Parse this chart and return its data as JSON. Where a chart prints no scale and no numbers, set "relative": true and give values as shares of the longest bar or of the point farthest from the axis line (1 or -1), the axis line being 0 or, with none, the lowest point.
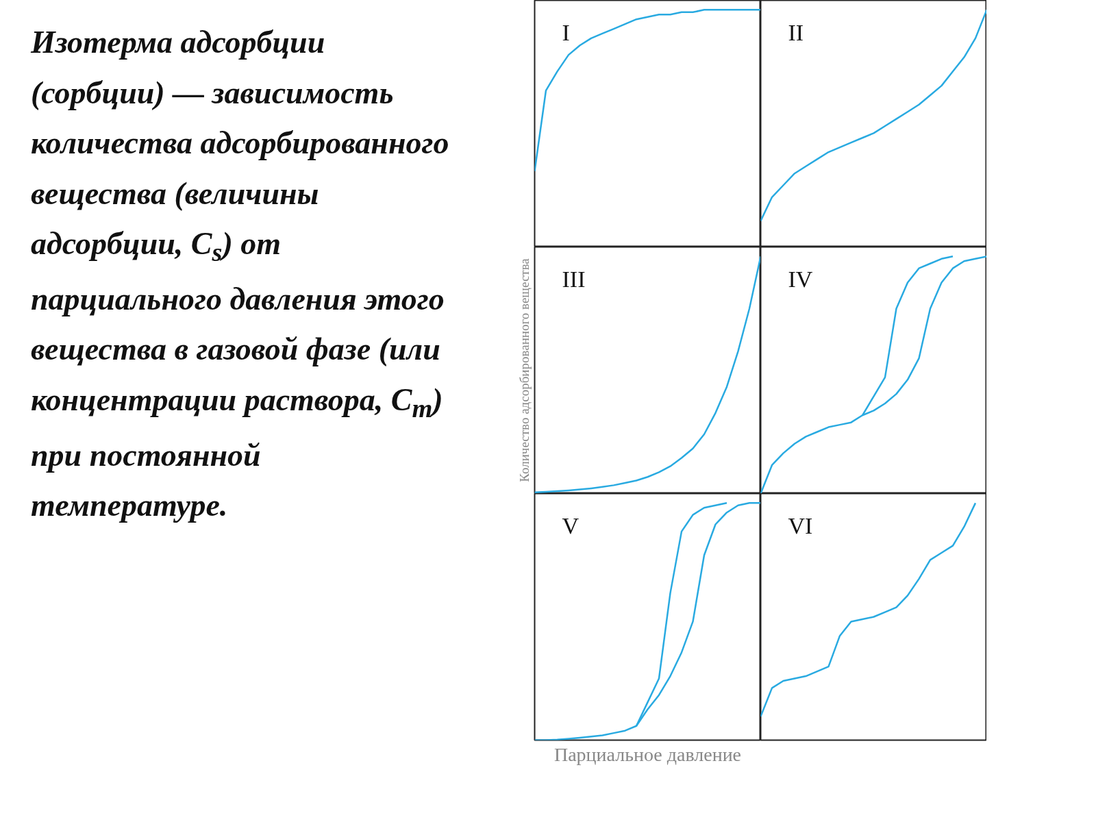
{
  "chart_data": [
    {
      "type": "other",
      "annotations": [
        "Изотерма адсорбции (сорбции) — зависимость количества адсорбированного вещества (величины адсорбции, C$_{s}$) от парциального давления этого вещества в газовой фазе (или концентрации раствора, C$_{m}$) при постоянной температуре."
      ]
    },
    {
      "type": "line",
      "title": "I",
      "relative": true,
      "categories": [
        null,
        null,
        null,
        null,
        null,
        null,
        null,
        null,
        null,
        null,
        null,
        null,
        null,
        null,
        null,
        null,
        null,
        null,
        null,
        null,
        null
      ],
      "series": [
        {
          "color": "#29aae1",
          "values": [
            0.32,
            0.66,
            0.74,
            0.81,
            0.85,
            0.88,
            0.9,
            0.92,
            0.94,
            0.96,
            0.97,
            0.98,
            0.98,
            0.99,
            0.99,
            1,
            1,
            1,
            1,
            1,
            1
          ]
        }
      ]
    },
    {
      "type": "line",
      "title": "II",
      "relative": true,
      "categories": [
        null,
        null,
        null,
        null,
        null,
        null,
        null,
        null,
        null,
        null,
        null,
        null,
        null,
        null,
        null,
        null,
        null,
        null,
        null,
        null,
        null
      ],
      "series": [
        {
          "color": "#29aae1",
          "values": [
            0.11,
            0.21,
            0.26,
            0.31,
            0.34,
            0.37,
            0.4,
            0.42,
            0.44,
            0.46,
            0.48,
            0.51,
            0.54,
            0.57,
            0.6,
            0.64,
            0.68,
            0.74,
            0.8,
            0.88,
            1
          ]
        }
      ]
    },
    {
      "type": "line",
      "title": "III",
      "ylabel": "Количество адсорбированного вещества",
      "relative": true,
      "categories": [
        null,
        null,
        null,
        null,
        null,
        null,
        null,
        null,
        null,
        null,
        null,
        null,
        null,
        null,
        null,
        null,
        null,
        null,
        null,
        null,
        null
      ],
      "series": [
        {
          "color": "#29aae1",
          "values": [
            0.005,
            0.007,
            0.01,
            0.013,
            0.017,
            0.022,
            0.028,
            0.035,
            0.045,
            0.055,
            0.07,
            0.09,
            0.115,
            0.15,
            0.19,
            0.25,
            0.34,
            0.45,
            0.6,
            0.78,
            1
          ]
        }
      ]
    },
    {
      "type": "line",
      "title": "IV",
      "relative": true,
      "categories": [
        null,
        null,
        null,
        null,
        null,
        null,
        null,
        null,
        null,
        null,
        null,
        null,
        null,
        null,
        null,
        null,
        null,
        null,
        null,
        null,
        null
      ],
      "series": [
        {
          "color": "#29aae1",
          "values": [
            0,
            0.12,
            0.17,
            0.21,
            0.24,
            0.26,
            0.28,
            0.29,
            0.3,
            0.33,
            0.35,
            0.38,
            0.42,
            0.48,
            0.57,
            0.78,
            0.89,
            0.95,
            0.98,
            0.99,
            1
          ]
        },
        {
          "color": "#29aae1",
          "values": [
            null,
            null,
            null,
            null,
            null,
            null,
            null,
            null,
            null,
            0.33,
            0.41,
            0.49,
            0.78,
            0.89,
            0.95,
            0.97,
            0.99,
            1,
            null,
            null,
            null
          ]
        }
      ]
    },
    {
      "type": "line",
      "title": "V",
      "xlabel": "Парциальное давление",
      "relative": true,
      "categories": [
        null,
        null,
        null,
        null,
        null,
        null,
        null,
        null,
        null,
        null,
        null,
        null,
        null,
        null,
        null,
        null,
        null,
        null,
        null,
        null,
        null
      ],
      "series": [
        {
          "color": "#29aae1",
          "values": [
            0,
            0,
            0.002,
            0.006,
            0.01,
            0.015,
            0.02,
            0.03,
            0.04,
            0.06,
            0.13,
            0.19,
            0.27,
            0.37,
            0.5,
            0.78,
            0.91,
            0.96,
            0.99,
            1,
            1
          ]
        },
        {
          "color": "#29aae1",
          "values": [
            null,
            null,
            null,
            null,
            null,
            null,
            null,
            null,
            null,
            0.06,
            0.16,
            0.26,
            0.62,
            0.88,
            0.95,
            0.98,
            0.99,
            1,
            null,
            null,
            null
          ]
        }
      ]
    },
    {
      "type": "line",
      "title": "VI",
      "relative": true,
      "categories": [
        null,
        null,
        null,
        null,
        null,
        null,
        null,
        null,
        null,
        null,
        null,
        null,
        null,
        null,
        null,
        null,
        null,
        null,
        null,
        null,
        null
      ],
      "series": [
        {
          "color": "#29aae1",
          "values": [
            0.1,
            0.22,
            0.25,
            0.26,
            0.27,
            0.29,
            0.31,
            0.44,
            0.5,
            0.51,
            0.52,
            0.54,
            0.56,
            0.61,
            0.68,
            0.76,
            0.79,
            0.82,
            0.9,
            1.0,
            null
          ]
        }
      ]
    }
  ]
}
